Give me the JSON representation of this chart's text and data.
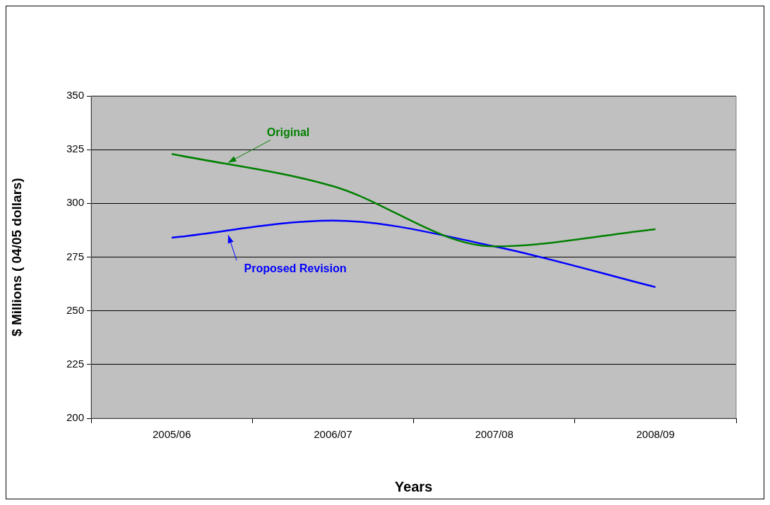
{
  "chart_data": {
    "type": "line",
    "xlabel": "Years",
    "ylabel": "$ Millions ( 04/05 dollars)",
    "categories": [
      "2005/06",
      "2006/07",
      "2007/08",
      "2008/09"
    ],
    "series": [
      {
        "name": "Original",
        "color": "#008000",
        "values": [
          323,
          308,
          280,
          288
        ]
      },
      {
        "name": "Proposed Revision",
        "color": "#0000ff",
        "values": [
          284,
          292,
          280,
          261
        ]
      }
    ],
    "ylim": [
      200,
      350
    ],
    "yticks": [
      200,
      225,
      250,
      275,
      300,
      325,
      350
    ],
    "grid": "y",
    "legend": false,
    "marker": "none",
    "line_style": "solid"
  }
}
